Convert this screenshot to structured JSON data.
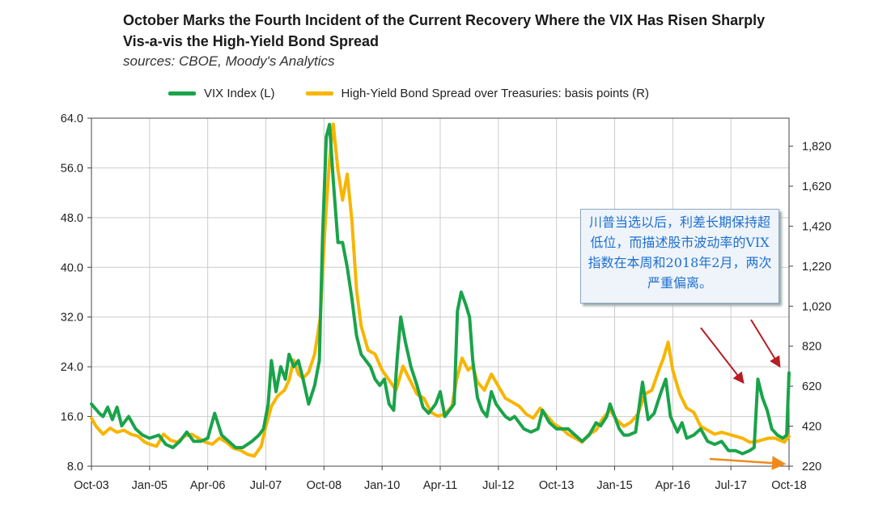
{
  "chart_data": {
    "type": "line",
    "title": "October Marks the Fourth Incident of the Current Recovery Where the VIX Has Risen Sharply Vis-a-vis the High-Yield Bond Spread",
    "subtitle": "sources: CBOE, Moody's Analytics",
    "x_ticks": [
      "Oct-03",
      "Jan-05",
      "Apr-06",
      "Jul-07",
      "Oct-08",
      "Jan-10",
      "Apr-11",
      "Jul-12",
      "Oct-13",
      "Jan-15",
      "Apr-16",
      "Jul-17",
      "Oct-18"
    ],
    "x_range": [
      2003.75,
      2018.75
    ],
    "y_left": {
      "label": "",
      "range": [
        8,
        64
      ],
      "ticks": [
        "8.0",
        "16.0",
        "24.0",
        "32.0",
        "40.0",
        "48.0",
        "56.0",
        "64.0"
      ]
    },
    "y_right": {
      "label": "",
      "range": [
        220,
        1960
      ],
      "ticks": [
        "220",
        "420",
        "620",
        "820",
        "1,020",
        "1,220",
        "1,420",
        "1,620",
        "1,820"
      ]
    },
    "grid": true,
    "legend_position": "top",
    "series": [
      {
        "name": "VIX Index  (L)",
        "axis": "left",
        "color": "#1aa34a",
        "points": [
          [
            2003.75,
            18
          ],
          [
            2003.92,
            16.5
          ],
          [
            2004.0,
            16
          ],
          [
            2004.1,
            17.5
          ],
          [
            2004.2,
            15.5
          ],
          [
            2004.3,
            17.5
          ],
          [
            2004.4,
            14.5
          ],
          [
            2004.55,
            16
          ],
          [
            2004.7,
            14
          ],
          [
            2004.85,
            13
          ],
          [
            2005.0,
            12.5
          ],
          [
            2005.2,
            13
          ],
          [
            2005.35,
            11.5
          ],
          [
            2005.5,
            11
          ],
          [
            2005.65,
            12
          ],
          [
            2005.8,
            13.5
          ],
          [
            2005.95,
            12
          ],
          [
            2006.1,
            12
          ],
          [
            2006.25,
            12.5
          ],
          [
            2006.4,
            16.5
          ],
          [
            2006.55,
            13
          ],
          [
            2006.7,
            12
          ],
          [
            2006.85,
            11
          ],
          [
            2007.0,
            11
          ],
          [
            2007.2,
            12
          ],
          [
            2007.35,
            13
          ],
          [
            2007.45,
            14
          ],
          [
            2007.55,
            18
          ],
          [
            2007.62,
            25
          ],
          [
            2007.72,
            20
          ],
          [
            2007.82,
            24
          ],
          [
            2007.92,
            22
          ],
          [
            2008.0,
            26
          ],
          [
            2008.1,
            24
          ],
          [
            2008.2,
            25
          ],
          [
            2008.3,
            22
          ],
          [
            2008.42,
            18
          ],
          [
            2008.55,
            21
          ],
          [
            2008.65,
            25
          ],
          [
            2008.72,
            45
          ],
          [
            2008.8,
            61
          ],
          [
            2008.87,
            63
          ],
          [
            2008.95,
            54
          ],
          [
            2009.05,
            44
          ],
          [
            2009.15,
            44
          ],
          [
            2009.25,
            40
          ],
          [
            2009.35,
            35
          ],
          [
            2009.45,
            29
          ],
          [
            2009.55,
            26
          ],
          [
            2009.65,
            25
          ],
          [
            2009.75,
            24
          ],
          [
            2009.85,
            22
          ],
          [
            2009.95,
            21
          ],
          [
            2010.05,
            22
          ],
          [
            2010.15,
            18
          ],
          [
            2010.25,
            17
          ],
          [
            2010.32,
            25
          ],
          [
            2010.4,
            32
          ],
          [
            2010.5,
            28
          ],
          [
            2010.62,
            24
          ],
          [
            2010.75,
            21
          ],
          [
            2010.88,
            17.5
          ],
          [
            2011.0,
            16.5
          ],
          [
            2011.15,
            18
          ],
          [
            2011.25,
            20
          ],
          [
            2011.35,
            16
          ],
          [
            2011.45,
            17
          ],
          [
            2011.55,
            18
          ],
          [
            2011.62,
            33
          ],
          [
            2011.7,
            36
          ],
          [
            2011.8,
            34
          ],
          [
            2011.88,
            32
          ],
          [
            2011.95,
            25
          ],
          [
            2012.05,
            19
          ],
          [
            2012.15,
            17
          ],
          [
            2012.25,
            16
          ],
          [
            2012.35,
            20
          ],
          [
            2012.45,
            18
          ],
          [
            2012.55,
            17
          ],
          [
            2012.65,
            16
          ],
          [
            2012.75,
            15.5
          ],
          [
            2012.85,
            16
          ],
          [
            2012.95,
            15
          ],
          [
            2013.05,
            14
          ],
          [
            2013.2,
            13.5
          ],
          [
            2013.35,
            14
          ],
          [
            2013.45,
            17
          ],
          [
            2013.6,
            15
          ],
          [
            2013.75,
            14
          ],
          [
            2013.85,
            14
          ],
          [
            2014.0,
            14
          ],
          [
            2014.15,
            13
          ],
          [
            2014.3,
            12
          ],
          [
            2014.45,
            13
          ],
          [
            2014.6,
            15
          ],
          [
            2014.7,
            14.5
          ],
          [
            2014.83,
            16
          ],
          [
            2014.9,
            18
          ],
          [
            2015.0,
            16
          ],
          [
            2015.1,
            14
          ],
          [
            2015.2,
            13
          ],
          [
            2015.3,
            13
          ],
          [
            2015.45,
            13.5
          ],
          [
            2015.6,
            21.5
          ],
          [
            2015.72,
            15.5
          ],
          [
            2015.85,
            16.5
          ],
          [
            2016.0,
            20
          ],
          [
            2016.1,
            22
          ],
          [
            2016.2,
            16
          ],
          [
            2016.35,
            13.5
          ],
          [
            2016.45,
            15
          ],
          [
            2016.55,
            12.5
          ],
          [
            2016.7,
            13
          ],
          [
            2016.85,
            14
          ],
          [
            2017.0,
            12
          ],
          [
            2017.15,
            11.5
          ],
          [
            2017.3,
            12
          ],
          [
            2017.45,
            10.5
          ],
          [
            2017.6,
            10.5
          ],
          [
            2017.75,
            10
          ],
          [
            2017.9,
            10.5
          ],
          [
            2018.0,
            11
          ],
          [
            2018.08,
            22
          ],
          [
            2018.18,
            19
          ],
          [
            2018.28,
            17
          ],
          [
            2018.38,
            14
          ],
          [
            2018.5,
            13
          ],
          [
            2018.62,
            12.5
          ],
          [
            2018.7,
            13
          ],
          [
            2018.75,
            23
          ]
        ]
      },
      {
        "name": "High-Yield Bond Spread over Treasuries: basis points (R)",
        "axis": "right",
        "color": "#f7b500",
        "points": [
          [
            2003.75,
            460
          ],
          [
            2003.85,
            420
          ],
          [
            2004.0,
            380
          ],
          [
            2004.15,
            410
          ],
          [
            2004.3,
            390
          ],
          [
            2004.45,
            400
          ],
          [
            2004.6,
            380
          ],
          [
            2004.75,
            370
          ],
          [
            2004.9,
            340
          ],
          [
            2005.0,
            330
          ],
          [
            2005.15,
            320
          ],
          [
            2005.3,
            380
          ],
          [
            2005.45,
            350
          ],
          [
            2005.6,
            340
          ],
          [
            2005.75,
            370
          ],
          [
            2005.9,
            380
          ],
          [
            2006.05,
            360
          ],
          [
            2006.2,
            340
          ],
          [
            2006.35,
            330
          ],
          [
            2006.5,
            360
          ],
          [
            2006.65,
            340
          ],
          [
            2006.8,
            310
          ],
          [
            2006.95,
            300
          ],
          [
            2007.1,
            280
          ],
          [
            2007.25,
            270
          ],
          [
            2007.4,
            320
          ],
          [
            2007.5,
            420
          ],
          [
            2007.62,
            520
          ],
          [
            2007.75,
            570
          ],
          [
            2007.9,
            600
          ],
          [
            2008.0,
            650
          ],
          [
            2008.1,
            750
          ],
          [
            2008.2,
            680
          ],
          [
            2008.3,
            660
          ],
          [
            2008.42,
            690
          ],
          [
            2008.55,
            780
          ],
          [
            2008.67,
            960
          ],
          [
            2008.78,
            1450
          ],
          [
            2008.87,
            1750
          ],
          [
            2008.95,
            1930
          ],
          [
            2009.05,
            1700
          ],
          [
            2009.15,
            1550
          ],
          [
            2009.25,
            1680
          ],
          [
            2009.35,
            1450
          ],
          [
            2009.45,
            1100
          ],
          [
            2009.55,
            920
          ],
          [
            2009.7,
            800
          ],
          [
            2009.85,
            780
          ],
          [
            2010.0,
            700
          ],
          [
            2010.15,
            650
          ],
          [
            2010.3,
            600
          ],
          [
            2010.45,
            720
          ],
          [
            2010.6,
            650
          ],
          [
            2010.75,
            580
          ],
          [
            2010.9,
            560
          ],
          [
            2011.05,
            490
          ],
          [
            2011.2,
            470
          ],
          [
            2011.35,
            480
          ],
          [
            2011.5,
            520
          ],
          [
            2011.6,
            650
          ],
          [
            2011.72,
            760
          ],
          [
            2011.85,
            700
          ],
          [
            2011.95,
            720
          ],
          [
            2012.05,
            640
          ],
          [
            2012.2,
            600
          ],
          [
            2012.35,
            680
          ],
          [
            2012.5,
            620
          ],
          [
            2012.65,
            560
          ],
          [
            2012.8,
            540
          ],
          [
            2012.95,
            520
          ],
          [
            2013.1,
            480
          ],
          [
            2013.25,
            460
          ],
          [
            2013.4,
            510
          ],
          [
            2013.55,
            470
          ],
          [
            2013.7,
            430
          ],
          [
            2013.85,
            410
          ],
          [
            2014.0,
            380
          ],
          [
            2014.15,
            360
          ],
          [
            2014.3,
            340
          ],
          [
            2014.45,
            380
          ],
          [
            2014.6,
            400
          ],
          [
            2014.75,
            460
          ],
          [
            2014.9,
            500
          ],
          [
            2015.05,
            450
          ],
          [
            2015.2,
            420
          ],
          [
            2015.35,
            440
          ],
          [
            2015.5,
            480
          ],
          [
            2015.65,
            580
          ],
          [
            2015.8,
            600
          ],
          [
            2015.95,
            700
          ],
          [
            2016.05,
            760
          ],
          [
            2016.15,
            840
          ],
          [
            2016.25,
            700
          ],
          [
            2016.4,
            580
          ],
          [
            2016.55,
            510
          ],
          [
            2016.7,
            490
          ],
          [
            2016.85,
            420
          ],
          [
            2017.0,
            400
          ],
          [
            2017.15,
            380
          ],
          [
            2017.3,
            390
          ],
          [
            2017.45,
            380
          ],
          [
            2017.6,
            370
          ],
          [
            2017.75,
            360
          ],
          [
            2017.9,
            340
          ],
          [
            2018.0,
            340
          ],
          [
            2018.15,
            350
          ],
          [
            2018.3,
            360
          ],
          [
            2018.45,
            360
          ],
          [
            2018.55,
            350
          ],
          [
            2018.65,
            340
          ],
          [
            2018.75,
            370
          ]
        ]
      }
    ],
    "annotation": "川普当选以后，利差长期保持超低位，而描述股市波动率的VIX指数在本周和2018年2月，两次严重偏离。"
  }
}
